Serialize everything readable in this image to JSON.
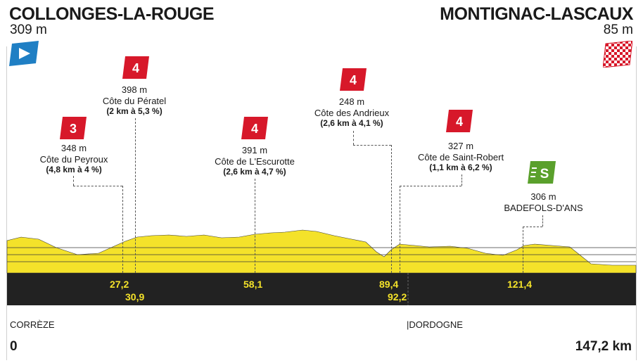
{
  "start": {
    "name": "COLLONGES-LA-ROUGE",
    "altitude": "309 m"
  },
  "finish": {
    "name": "MONTIGNAC-LASCAUX",
    "altitude": "85 m"
  },
  "climbs": [
    {
      "category": "3",
      "altitude": "348 m",
      "name": "Côte du Peyroux",
      "detail": "(4,8 km à 4 %)",
      "km": "27,2"
    },
    {
      "category": "4",
      "altitude": "398 m",
      "name": "Côte du Pératel",
      "detail": "(2 km à 5,3 %)",
      "km": "30,9"
    },
    {
      "category": "4",
      "altitude": "391 m",
      "name": "Côte de L'Escurotte",
      "detail": "(2,6 km à 4,7 %)",
      "km": "58,1"
    },
    {
      "category": "4",
      "altitude": "248 m",
      "name": "Côte des Andrieux",
      "detail": "(2,6 km à 4,1 %)",
      "km": "89,4"
    },
    {
      "category": "4",
      "altitude": "327 m",
      "name": "Côte de Saint-Robert",
      "detail": "(1,1 km à 6,2 %)",
      "km": "92,2"
    }
  ],
  "sprint": {
    "badge": "S",
    "altitude": "306 m",
    "name": "BADEFOLS-D'ANS",
    "km": "121,4"
  },
  "regions": [
    "CORRÈZE",
    "|DORDOGNE"
  ],
  "distance": {
    "start": "0",
    "end": "147,2 km"
  },
  "colors": {
    "profile": "#f4e22a",
    "ground": "#222222",
    "climb_badge": "#d7182a",
    "sprint_badge": "#5aa02c",
    "start_flag": "#1f7fc4"
  }
}
